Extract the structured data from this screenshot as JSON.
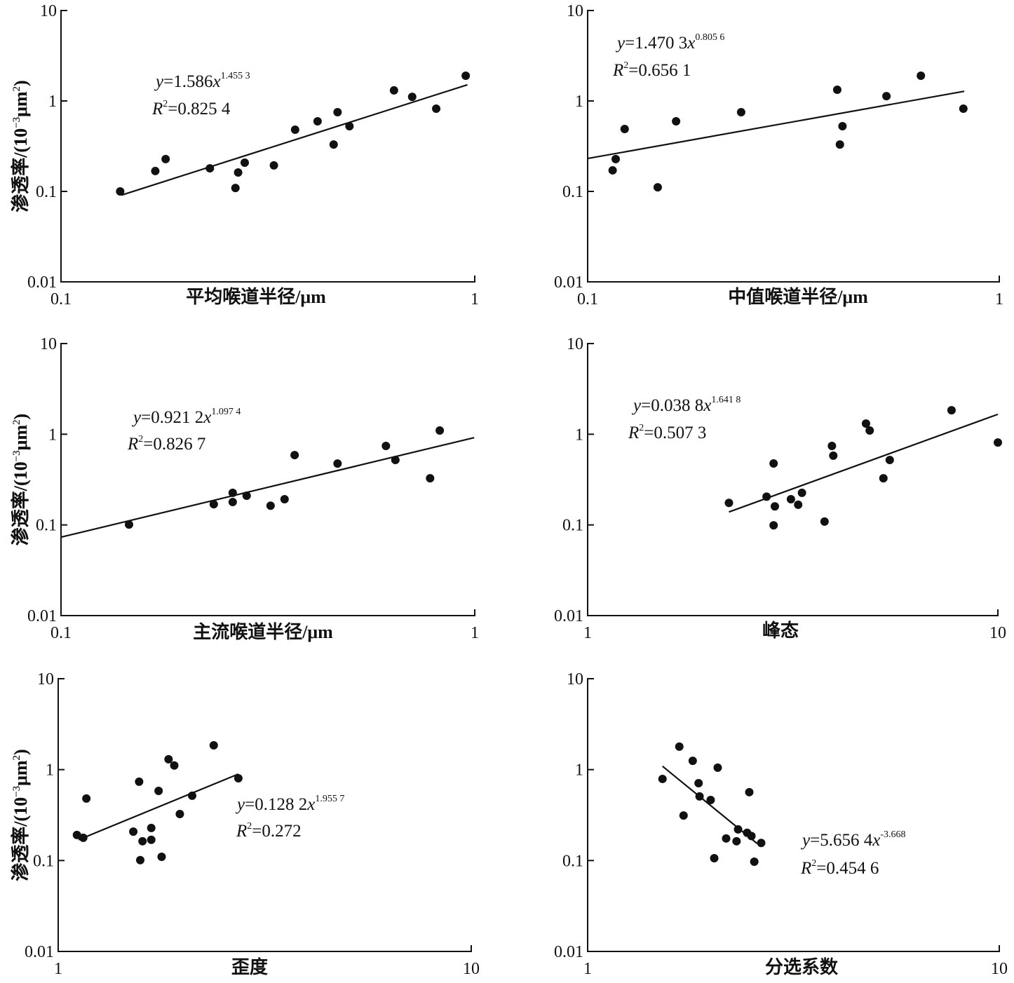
{
  "chart_data": [
    {
      "type": "scatter",
      "xscale": "log",
      "yscale": "log",
      "color": "#111111",
      "xlabel": "平均喉道半径/μm",
      "ylabel": [
        "渗透率/(10",
        "−3",
        "μm",
        "2",
        ")"
      ],
      "xlim": [
        0.1,
        1
      ],
      "ylim": [
        0.01,
        10
      ],
      "xticks": [
        0.1,
        1
      ],
      "yticks": [
        0.01,
        0.1,
        1,
        10
      ],
      "x": [
        0.139,
        0.169,
        0.179,
        0.229,
        0.264,
        0.268,
        0.278,
        0.327,
        0.368,
        0.417,
        0.456,
        0.466,
        0.498,
        0.638,
        0.706,
        0.807,
        0.951
      ],
      "values": [
        0.1,
        0.168,
        0.228,
        0.18,
        0.109,
        0.162,
        0.208,
        0.194,
        0.481,
        0.596,
        0.33,
        0.752,
        0.526,
        1.31,
        1.11,
        0.822,
        1.9
      ],
      "fit": {
        "x": [
          0.14,
          0.96
        ],
        "y": [
          0.091,
          1.51
        ]
      },
      "equation": {
        "y": "y",
        "coef": "=1.586",
        "x": "x",
        "exp": "1.455 3"
      },
      "r2": {
        "R": "R",
        "sup": "2",
        "value": "=0.825 4"
      }
    },
    {
      "type": "scatter",
      "xscale": "log",
      "yscale": "log",
      "color": "#111111",
      "xlabel": "中值喉道半径/μm",
      "ylabel": [
        "渗透率/(10",
        "−3",
        "μm",
        "2",
        ")"
      ],
      "xlim": [
        0.1,
        1
      ],
      "ylim": [
        0.01,
        10
      ],
      "xticks": [
        0.1,
        1
      ],
      "yticks": [
        0.01,
        0.1,
        1,
        10
      ],
      "x": [
        0.115,
        0.117,
        0.123,
        0.148,
        0.164,
        0.236,
        0.404,
        0.416,
        0.41,
        0.532,
        0.645,
        0.818
      ],
      "values": [
        0.171,
        0.228,
        0.49,
        0.111,
        0.596,
        0.752,
        1.33,
        0.526,
        0.33,
        1.13,
        1.9,
        0.822
      ],
      "fit": {
        "x": [
          0.1,
          0.822
        ],
        "y": [
          0.231,
          1.28
        ]
      },
      "equation": {
        "y": "y",
        "coef": "=1.470 3",
        "x": "x",
        "exp": "0.805 6"
      },
      "r2": {
        "R": "R",
        "sup": "2",
        "value": "=0.656 1"
      }
    },
    {
      "type": "scatter",
      "xscale": "log",
      "yscale": "log",
      "color": "#111111",
      "xlabel": "主流喉道半径/μm",
      "ylabel": [
        "渗透率/(10",
        "−3",
        "μm",
        "2",
        ")"
      ],
      "xlim": [
        0.1,
        1
      ],
      "ylim": [
        0.01,
        10
      ],
      "xticks": [
        0.1,
        1
      ],
      "yticks": [
        0.01,
        0.1,
        1,
        10
      ],
      "x": [
        0.146,
        0.234,
        0.26,
        0.26,
        0.281,
        0.321,
        0.347,
        0.367,
        0.466,
        0.61,
        0.643,
        0.78,
        0.823
      ],
      "values": [
        0.101,
        0.169,
        0.226,
        0.179,
        0.21,
        0.163,
        0.192,
        0.589,
        0.475,
        0.743,
        0.52,
        0.327,
        1.1
      ],
      "fit": {
        "x": [
          0.1,
          0.997
        ],
        "y": [
          0.0733,
          0.918
        ]
      },
      "equation": {
        "y": "y",
        "coef": "=0.921 2",
        "x": "x",
        "exp": "1.097 4"
      },
      "r2": {
        "R": "R",
        "sup": "2",
        "value": "=0.826 7"
      }
    },
    {
      "type": "scatter",
      "xscale": "log",
      "yscale": "log",
      "color": "#111111",
      "xlabel": "峰态",
      "ylabel": [
        "渗透率/(10",
        "−3",
        "μm",
        "2",
        ")"
      ],
      "xlim": [
        1,
        10
      ],
      "ylim": [
        0.01,
        10
      ],
      "xticks": [
        1,
        10
      ],
      "yticks": [
        0.01,
        0.1,
        1,
        10
      ],
      "x": [
        2.21,
        2.73,
        2.84,
        2.86,
        2.84,
        3.13,
        3.26,
        3.33,
        3.78,
        3.94,
        3.97,
        4.77,
        4.87,
        5.26,
        5.45,
        7.71,
        10
      ],
      "values": [
        0.175,
        0.205,
        0.476,
        0.16,
        0.099,
        0.192,
        0.167,
        0.226,
        0.109,
        0.743,
        0.58,
        1.31,
        1.1,
        0.327,
        0.52,
        1.84,
        0.81
      ],
      "fit": {
        "x": [
          2.21,
          10
        ],
        "y": [
          0.139,
          1.66
        ]
      },
      "equation": {
        "y": "y",
        "coef": "=0.038 8",
        "x": "x",
        "exp": "1.641 8"
      },
      "r2": {
        "R": "R",
        "sup": "2",
        "value": "=0.507 3"
      }
    },
    {
      "type": "scatter",
      "xscale": "log",
      "yscale": "log",
      "color": "#111111",
      "xlabel": "歪度",
      "ylabel": [
        "渗透率/(10",
        "−3",
        "μm",
        "2",
        ")"
      ],
      "xlim": [
        1,
        10
      ],
      "ylim": [
        0.01,
        10
      ],
      "xticks": [
        1,
        10
      ],
      "yticks": [
        0.01,
        0.1,
        1,
        10
      ],
      "x": [
        1.11,
        1.15,
        1.17,
        1.52,
        1.57,
        1.58,
        1.6,
        1.68,
        1.68,
        1.75,
        1.78,
        1.85,
        1.91,
        1.97,
        2.11,
        2.38,
        2.73
      ],
      "values": [
        0.191,
        0.178,
        0.481,
        0.208,
        0.736,
        0.101,
        0.163,
        0.228,
        0.169,
        0.584,
        0.11,
        1.3,
        1.11,
        0.325,
        0.516,
        1.85,
        0.804
      ],
      "fit": {
        "x": [
          1.12,
          2.73
        ],
        "y": [
          0.169,
          0.894
        ]
      },
      "equation": {
        "y": "y",
        "coef": "=0.128 2",
        "x": "x",
        "exp": "1.955 7"
      },
      "r2": {
        "R": "R",
        "sup": "2",
        "value": "=0.272"
      }
    },
    {
      "type": "scatter",
      "xscale": "log",
      "yscale": "log",
      "color": "#111111",
      "xlabel": "分选系数",
      "ylabel": [
        "渗透率/(10",
        "−3",
        "μm",
        "2",
        ")"
      ],
      "xlim": [
        1,
        10
      ],
      "ylim": [
        0.01,
        10
      ],
      "xticks": [
        1,
        10
      ],
      "yticks": [
        0.01,
        0.1,
        1,
        10
      ],
      "x": [
        1.52,
        1.67,
        1.71,
        1.8,
        1.86,
        1.87,
        1.99,
        2.03,
        2.07,
        2.17,
        2.3,
        2.32,
        2.44,
        2.47,
        2.5,
        2.54,
        2.64
      ],
      "values": [
        0.79,
        1.79,
        0.313,
        1.25,
        0.71,
        0.507,
        0.463,
        0.106,
        1.05,
        0.175,
        0.163,
        0.22,
        0.202,
        0.565,
        0.186,
        0.097,
        0.156
      ],
      "fit": {
        "x": [
          1.52,
          2.58
        ],
        "y": [
          1.09,
          0.154
        ]
      },
      "equation": {
        "y": "y",
        "coef": "=5.656 4",
        "x": "x",
        "exp": "-3.668"
      },
      "r2": {
        "R": "R",
        "sup": "2",
        "value": "=0.454 6"
      }
    }
  ]
}
